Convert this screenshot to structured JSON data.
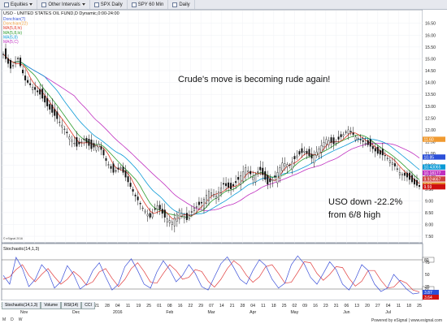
{
  "toolbar": {
    "items": [
      {
        "label": "Equities",
        "icon": "list-icon"
      },
      {
        "label": "Other Intervals",
        "icon": "list-icon"
      },
      {
        "label": "SPX Daily",
        "icon": "checkbox-icon"
      },
      {
        "label": "SPY 60 Min",
        "icon": "checkbox-icon"
      },
      {
        "label": "Daily",
        "icon": "checkbox-icon"
      }
    ]
  },
  "chart_header": "USO - UNITED STATES OIL FUND,D Dynamic,0:00-24:00",
  "legend": [
    "Donchian(7)",
    "Donchian(22)",
    "MA(5,8,hi)",
    "MA(5,8,lo)",
    "MA(5,8)",
    "MA(5,C)"
  ],
  "annotations": {
    "headline": "Crude's move is becoming rude again!",
    "note_line1": "USO down -22.2%",
    "note_line2": "from 6/8 high"
  },
  "watermark": "© eSignal 2016",
  "stochastic_label": "Stochastic(14,1,3)",
  "stoch_levels": {
    "upper": "80",
    "lower": "20"
  },
  "stoch_right_labels": [
    "75",
    "50",
    "25"
  ],
  "stoch_right_values": [
    "3.87",
    "3.64"
  ],
  "price_axis": [
    "16.50",
    "16.00",
    "15.50",
    "15.00",
    "14.50",
    "14.00",
    "13.50",
    "13.00",
    "12.50",
    "12.00",
    "11.50",
    "11.00",
    "10.50",
    "10.00",
    "9.50",
    "9.00",
    "8.50",
    "8.00",
    "7.50"
  ],
  "price_tags": [
    {
      "value": "11.60",
      "color": "#f09a30"
    },
    {
      "value": "10.85",
      "color": "#2b4fd8"
    },
    {
      "value": "10.43065",
      "color": "#0a9ad6"
    },
    {
      "value": "10.18177",
      "color": "#c030c0"
    },
    {
      "value": "9.924667",
      "color": "#d04040"
    },
    {
      "value": "9.67",
      "color": "#e0802a"
    },
    {
      "value": "9.59",
      "color": "#d01010"
    }
  ],
  "x_axis": {
    "day_labels": [
      "19",
      "26",
      "02",
      "09",
      "16",
      "23",
      "30",
      "07",
      "14",
      "21",
      "28",
      "04",
      "11",
      "19",
      "25",
      "01",
      "08",
      "16",
      "22",
      "29",
      "07",
      "14",
      "21",
      "28",
      "04",
      "11",
      "18",
      "25",
      "02",
      "09",
      "16",
      "23",
      "31",
      "06",
      "13",
      "20",
      "27",
      "04",
      "11",
      "18",
      "25"
    ],
    "month_labels": [
      {
        "label": "Nov",
        "index": 2
      },
      {
        "label": "Dec",
        "index": 7
      },
      {
        "label": "2016",
        "index": 11
      },
      {
        "label": "Feb",
        "index": 16
      },
      {
        "label": "Mar",
        "index": 20
      },
      {
        "label": "Apr",
        "index": 24
      },
      {
        "label": "May",
        "index": 28
      },
      {
        "label": "Jun",
        "index": 33
      },
      {
        "label": "Jul",
        "index": 37
      }
    ]
  },
  "footer_tabs": [
    "Stochastic(14,1,3)",
    "Volume",
    "RSI(14)",
    "CCI"
  ],
  "footer_left": [
    "M",
    "D",
    "W"
  ],
  "footer_right": "Powered by eSignal | www.esignal.com",
  "chart_data": {
    "type": "candlestick",
    "title": "USO - UNITED STATES OIL FUND,D Dynamic,0:00-24:00",
    "ylim": [
      7.4,
      16.8
    ],
    "y_ticks": [
      7.5,
      8.0,
      8.5,
      9.0,
      9.5,
      10.0,
      10.5,
      11.0,
      11.5,
      12.0,
      12.5,
      13.0,
      13.5,
      14.0,
      14.5,
      15.0,
      15.5,
      16.0,
      16.5
    ],
    "close_path": [
      [
        0,
        15.2
      ],
      [
        3,
        14.6
      ],
      [
        6,
        15.0
      ],
      [
        9,
        14.1
      ],
      [
        12,
        13.8
      ],
      [
        15,
        13.5
      ],
      [
        18,
        13.0
      ],
      [
        21,
        12.6
      ],
      [
        24,
        12.2
      ],
      [
        27,
        11.7
      ],
      [
        30,
        11.3
      ],
      [
        33,
        11.6
      ],
      [
        36,
        11.2
      ],
      [
        39,
        11.4
      ],
      [
        42,
        10.7
      ],
      [
        45,
        10.2
      ],
      [
        48,
        10.4
      ],
      [
        51,
        9.8
      ],
      [
        54,
        9.2
      ],
      [
        57,
        8.7
      ],
      [
        60,
        8.3
      ],
      [
        63,
        8.8
      ],
      [
        66,
        8.3
      ],
      [
        69,
        8.1
      ],
      [
        72,
        8.6
      ],
      [
        75,
        8.2
      ],
      [
        78,
        8.7
      ],
      [
        81,
        8.9
      ],
      [
        84,
        9.4
      ],
      [
        87,
        9.2
      ],
      [
        90,
        9.7
      ],
      [
        93,
        9.5
      ],
      [
        96,
        9.9
      ],
      [
        99,
        10.4
      ],
      [
        102,
        10.0
      ],
      [
        105,
        10.3
      ],
      [
        108,
        9.7
      ],
      [
        111,
        10.0
      ],
      [
        114,
        10.6
      ],
      [
        117,
        10.5
      ],
      [
        120,
        10.9
      ],
      [
        123,
        11.1
      ],
      [
        126,
        10.8
      ],
      [
        129,
        11.2
      ],
      [
        132,
        11.6
      ],
      [
        135,
        11.4
      ],
      [
        138,
        11.7
      ],
      [
        141,
        12.0
      ],
      [
        144,
        11.7
      ],
      [
        147,
        11.5
      ],
      [
        150,
        11.3
      ],
      [
        153,
        11.0
      ],
      [
        156,
        10.9
      ],
      [
        159,
        10.6
      ],
      [
        162,
        10.2
      ],
      [
        165,
        10.0
      ],
      [
        168,
        9.7
      ],
      [
        170,
        9.6
      ]
    ],
    "stochastic": {
      "ylim": [
        0,
        100
      ],
      "levels": [
        80,
        20
      ],
      "k": [
        48,
        30,
        85,
        62,
        25,
        40,
        70,
        55,
        22,
        35,
        68,
        50,
        20,
        30,
        58,
        74,
        45,
        18,
        30,
        66,
        82,
        58,
        30,
        22,
        55,
        78,
        60,
        35,
        48,
        70,
        52,
        25,
        18,
        45,
        72,
        86,
        64,
        40,
        30,
        58,
        80,
        68,
        40,
        22,
        32,
        70,
        88,
        72,
        44,
        30,
        52,
        76,
        60,
        30,
        18,
        40,
        70,
        58,
        30,
        15,
        22,
        50,
        35,
        20,
        10,
        12
      ],
      "d": [
        40,
        45,
        60,
        70,
        48,
        35,
        50,
        62,
        45,
        30,
        40,
        56,
        45,
        28,
        35,
        55,
        62,
        42,
        25,
        40,
        62,
        74,
        56,
        34,
        32,
        52,
        70,
        58,
        40,
        44,
        60,
        56,
        36,
        24,
        40,
        62,
        78,
        68,
        48,
        34,
        45,
        66,
        70,
        52,
        32,
        34,
        54,
        76,
        74,
        52,
        38,
        50,
        66,
        64,
        42,
        26,
        36,
        58,
        58,
        38,
        22,
        24,
        38,
        32,
        18,
        14
      ]
    }
  }
}
